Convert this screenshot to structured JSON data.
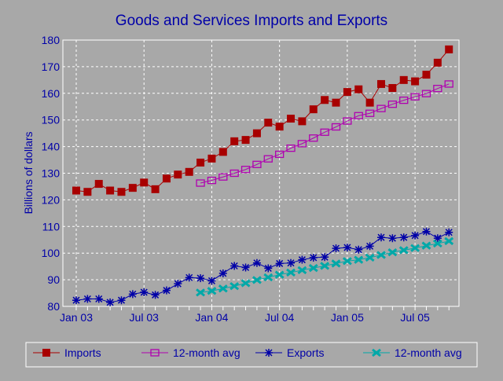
{
  "chart_data": {
    "type": "line",
    "title": "Goods and Services Imports and Exports",
    "ylabel": "Billions of dollars",
    "xlabel": "",
    "ylim": [
      80,
      180
    ],
    "yticks": [
      80,
      90,
      100,
      110,
      120,
      130,
      140,
      150,
      160,
      170,
      180
    ],
    "xtick_labels": [
      "Jan 03",
      "Jul 03",
      "Jan 04",
      "Jul 04",
      "Jan 05",
      "Jul 05"
    ],
    "x_start": "Jan 03",
    "x_end": "Oct 05",
    "grid": true,
    "legend_position": "bottom",
    "series": [
      {
        "name": "Imports",
        "color": "#a80000",
        "marker": "filled-square",
        "start": "Jan 03",
        "values": [
          123.5,
          123,
          126,
          123.5,
          123,
          124.5,
          126.5,
          124,
          128,
          129.5,
          130.5,
          134,
          135.5,
          138,
          142,
          142.5,
          145,
          149,
          147.5,
          150.5,
          149.5,
          154,
          157.5,
          156.5,
          160.5,
          161.5,
          156.5,
          163.5,
          162,
          165,
          164.5,
          167,
          171.5,
          176.5
        ]
      },
      {
        "name": "12-month avg",
        "color": "#b000b0",
        "marker": "open-square",
        "start": "Dec 03",
        "values": [
          126.3,
          127.3,
          128.6,
          130,
          131.4,
          133.3,
          135.4,
          137.1,
          139.4,
          141.1,
          143.2,
          145.4,
          147.4,
          149.6,
          151.6,
          152.5,
          154.3,
          155.9,
          157.4,
          158.7,
          159.9,
          161.8,
          163.5
        ]
      },
      {
        "name": "Exports",
        "color": "#0000a8",
        "marker": "asterisk",
        "start": "Jan 03",
        "values": [
          82.3,
          82.8,
          82.8,
          81.5,
          82.3,
          84.6,
          85.3,
          84.3,
          86,
          88.5,
          90.8,
          90.6,
          89.6,
          92.4,
          95.2,
          94.6,
          96.3,
          94.3,
          96.1,
          96.3,
          97.5,
          98.3,
          98.5,
          101.8,
          102.1,
          101.3,
          102.6,
          105.9,
          105.6,
          105.9,
          106.6,
          108.1,
          105.6,
          107.8
        ]
      },
      {
        "name": "12-month avg",
        "color": "#00a8a8",
        "marker": "x-cross",
        "start": "Dec 03",
        "values": [
          85.2,
          85.8,
          86.7,
          87.6,
          88.7,
          89.9,
          90.9,
          91.9,
          92.7,
          93.6,
          94.4,
          95.2,
          96.1,
          97,
          97.5,
          98.3,
          99.3,
          100.3,
          101.1,
          101.9,
          102.8,
          103.6,
          104.5
        ]
      }
    ]
  }
}
